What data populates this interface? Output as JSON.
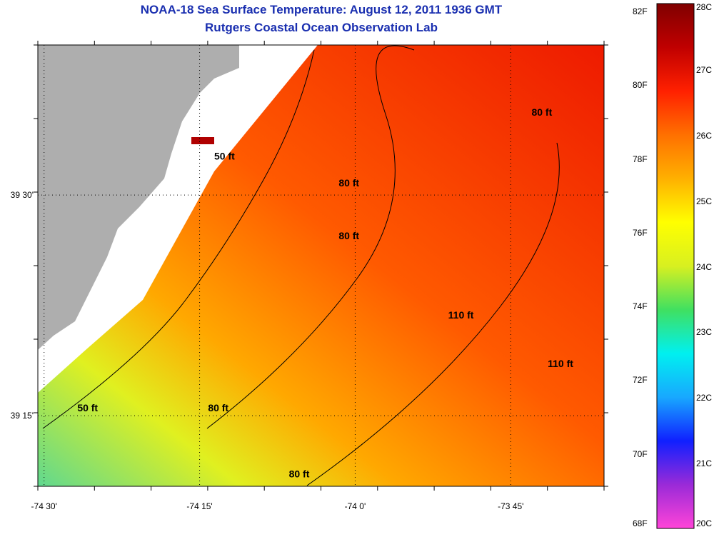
{
  "title": {
    "line1": "NOAA-18 Sea Surface Temperature:  August 12, 2011 1936 GMT",
    "line2": "Rutgers Coastal Ocean Observation Lab"
  },
  "axes": {
    "x_ticks": [
      {
        "label": "-74 30'",
        "value": -74.5
      },
      {
        "label": "-74 15'",
        "value": -74.25
      },
      {
        "label": "-74 0'",
        "value": -74.0
      },
      {
        "label": "-73 45'",
        "value": -73.75
      }
    ],
    "y_ticks": [
      {
        "label": "39 30'",
        "value": 39.5
      },
      {
        "label": "39 15'",
        "value": 39.25
      }
    ],
    "grid": "dotted",
    "lon_range": [
      -74.51,
      -73.6
    ],
    "lat_range": [
      39.17,
      39.67
    ]
  },
  "contour_labels": [
    {
      "text": "50 ft",
      "lon": -74.21,
      "lat": 39.54
    },
    {
      "text": "50 ft",
      "lon": -74.43,
      "lat": 39.255
    },
    {
      "text": "80 ft",
      "lon": -74.01,
      "lat": 39.51
    },
    {
      "text": "80 ft",
      "lon": -74.01,
      "lat": 39.45
    },
    {
      "text": "80 ft",
      "lon": -73.7,
      "lat": 39.59
    },
    {
      "text": "80 ft",
      "lon": -74.22,
      "lat": 39.255
    },
    {
      "text": "80 ft",
      "lon": -74.09,
      "lat": 39.18
    },
    {
      "text": "110 ft",
      "lon": -73.83,
      "lat": 39.36
    },
    {
      "text": "110 ft",
      "lon": -73.67,
      "lat": 39.305
    }
  ],
  "colorbar": {
    "left_labels": [
      "82F",
      "80F",
      "78F",
      "76F",
      "74F",
      "72F",
      "70F",
      "68F"
    ],
    "right_labels": [
      "28C",
      "27C",
      "26C",
      "25C",
      "24C",
      "23C",
      "22C",
      "21C",
      "20C"
    ],
    "stops": [
      "#ff44d8",
      "#9a2ad8",
      "#1020ff",
      "#18a8ff",
      "#00f0f0",
      "#40e060",
      "#d8f020",
      "#ffff00",
      "#ffb000",
      "#ff7000",
      "#ff2000",
      "#c00000",
      "#800000"
    ]
  },
  "colors": {
    "land": "#aeaeae",
    "nodata": "#ffffff",
    "title": "#1a2fb0"
  }
}
